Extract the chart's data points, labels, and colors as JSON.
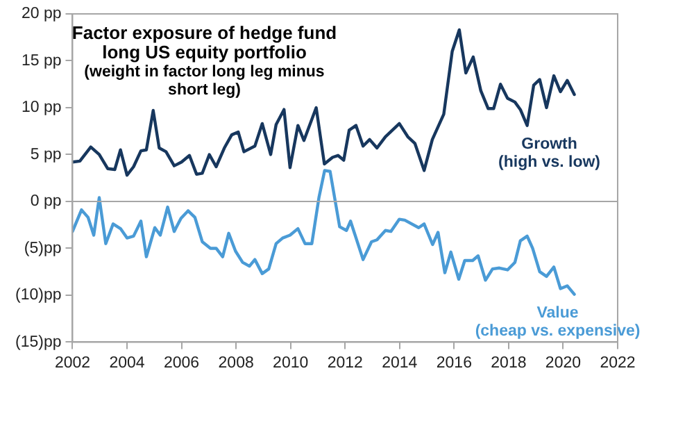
{
  "chart_data": {
    "type": "line",
    "title": "Factor exposure of hedge fund long US equity portfolio",
    "subtitle": "(weight in factor long leg minus short leg)",
    "xlim": [
      2002,
      2022
    ],
    "xticks": [
      2002,
      2004,
      2006,
      2008,
      2010,
      2012,
      2014,
      2016,
      2018,
      2020,
      2022
    ],
    "ylim": [
      -15,
      20
    ],
    "yticks": [
      {
        "value": -15,
        "label": "(15)pp"
      },
      {
        "value": -10,
        "label": "(10)pp"
      },
      {
        "value": -5,
        "label": "(5)pp"
      },
      {
        "value": 0,
        "label": "0 pp"
      },
      {
        "value": 5,
        "label": "5 pp"
      },
      {
        "value": 10,
        "label": "10 pp"
      },
      {
        "value": 15,
        "label": "15 pp"
      },
      {
        "value": 20,
        "label": "20 pp"
      }
    ],
    "grid": false,
    "legend": false,
    "marker": "none",
    "line_style": "solid",
    "ref_lines": [
      {
        "axis": "y",
        "value": 0,
        "color": "#a6a6a6"
      }
    ],
    "series": [
      {
        "name": "Growth (high vs. low)",
        "color": "#17375e",
        "x": [
          2002.0,
          2002.27,
          2002.67,
          2002.98,
          2003.29,
          2003.55,
          2003.76,
          2004.0,
          2004.24,
          2004.51,
          2004.71,
          2004.96,
          2005.18,
          2005.43,
          2005.73,
          2006.0,
          2006.29,
          2006.55,
          2006.76,
          2007.02,
          2007.27,
          2007.57,
          2007.84,
          2008.08,
          2008.29,
          2008.69,
          2008.96,
          2009.27,
          2009.47,
          2009.76,
          2009.98,
          2010.27,
          2010.49,
          2010.94,
          2011.24,
          2011.54,
          2011.74,
          2011.95,
          2012.15,
          2012.4,
          2012.66,
          2012.9,
          2013.17,
          2013.48,
          2013.99,
          2014.3,
          2014.56,
          2014.9,
          2015.2,
          2015.62,
          2015.93,
          2016.19,
          2016.43,
          2016.7,
          2016.98,
          2017.25,
          2017.45,
          2017.7,
          2017.96,
          2018.23,
          2018.43,
          2018.68,
          2018.92,
          2019.14,
          2019.39,
          2019.66,
          2019.9,
          2020.15,
          2020.41
        ],
        "values": [
          4.2,
          4.3,
          5.8,
          5.0,
          3.5,
          3.4,
          5.5,
          2.8,
          3.7,
          5.4,
          5.5,
          9.7,
          5.7,
          5.3,
          3.8,
          4.2,
          4.9,
          2.9,
          3.0,
          5.0,
          3.7,
          5.7,
          7.1,
          7.4,
          5.3,
          5.9,
          8.3,
          5.0,
          8.2,
          9.8,
          3.6,
          8.1,
          6.5,
          10.0,
          4.0,
          4.7,
          4.9,
          4.4,
          7.6,
          8.1,
          5.9,
          6.6,
          5.7,
          6.9,
          8.3,
          6.9,
          6.2,
          3.3,
          6.6,
          9.3,
          16.0,
          18.3,
          13.7,
          15.4,
          11.8,
          9.9,
          9.9,
          12.5,
          11.0,
          10.6,
          9.8,
          8.1,
          12.4,
          13.0,
          10.0,
          13.4,
          11.7,
          12.9,
          11.4
        ]
      },
      {
        "name": "Value (cheap vs. expensive)",
        "color": "#4a9bd6",
        "x": [
          2002.0,
          2002.33,
          2002.57,
          2002.78,
          2002.98,
          2003.22,
          2003.49,
          2003.76,
          2004.0,
          2004.24,
          2004.51,
          2004.71,
          2005.02,
          2005.22,
          2005.49,
          2005.73,
          2005.98,
          2006.24,
          2006.49,
          2006.76,
          2007.06,
          2007.27,
          2007.51,
          2007.73,
          2007.98,
          2008.24,
          2008.49,
          2008.69,
          2008.96,
          2009.2,
          2009.47,
          2009.71,
          2009.98,
          2010.27,
          2010.53,
          2010.78,
          2011.04,
          2011.25,
          2011.45,
          2011.8,
          2012.05,
          2012.2,
          2012.66,
          2012.97,
          2013.17,
          2013.48,
          2013.68,
          2013.99,
          2014.19,
          2014.7,
          2014.9,
          2015.21,
          2015.41,
          2015.66,
          2015.88,
          2016.17,
          2016.39,
          2016.68,
          2016.88,
          2017.15,
          2017.41,
          2017.66,
          2017.96,
          2018.23,
          2018.43,
          2018.68,
          2018.88,
          2019.14,
          2019.39,
          2019.66,
          2019.9,
          2020.15,
          2020.41
        ],
        "values": [
          -3.2,
          -0.9,
          -1.7,
          -3.6,
          0.4,
          -4.5,
          -2.4,
          -2.9,
          -3.9,
          -3.7,
          -2.1,
          -5.9,
          -2.8,
          -3.6,
          -0.6,
          -3.2,
          -1.8,
          -1.0,
          -1.7,
          -4.3,
          -5.0,
          -5.0,
          -5.9,
          -3.4,
          -5.3,
          -6.5,
          -6.9,
          -6.2,
          -7.7,
          -7.2,
          -4.5,
          -3.9,
          -3.6,
          -2.9,
          -4.5,
          -4.5,
          0.4,
          3.3,
          3.2,
          -2.7,
          -3.1,
          -2.1,
          -6.2,
          -4.3,
          -4.1,
          -3.1,
          -3.2,
          -1.9,
          -2.0,
          -2.8,
          -2.4,
          -4.6,
          -3.3,
          -7.6,
          -5.4,
          -8.3,
          -6.3,
          -6.3,
          -5.8,
          -8.4,
          -7.2,
          -7.1,
          -7.3,
          -6.5,
          -4.2,
          -3.7,
          -5.0,
          -7.5,
          -8.0,
          -7.0,
          -9.3,
          -9.0,
          -9.9
        ]
      }
    ]
  }
}
